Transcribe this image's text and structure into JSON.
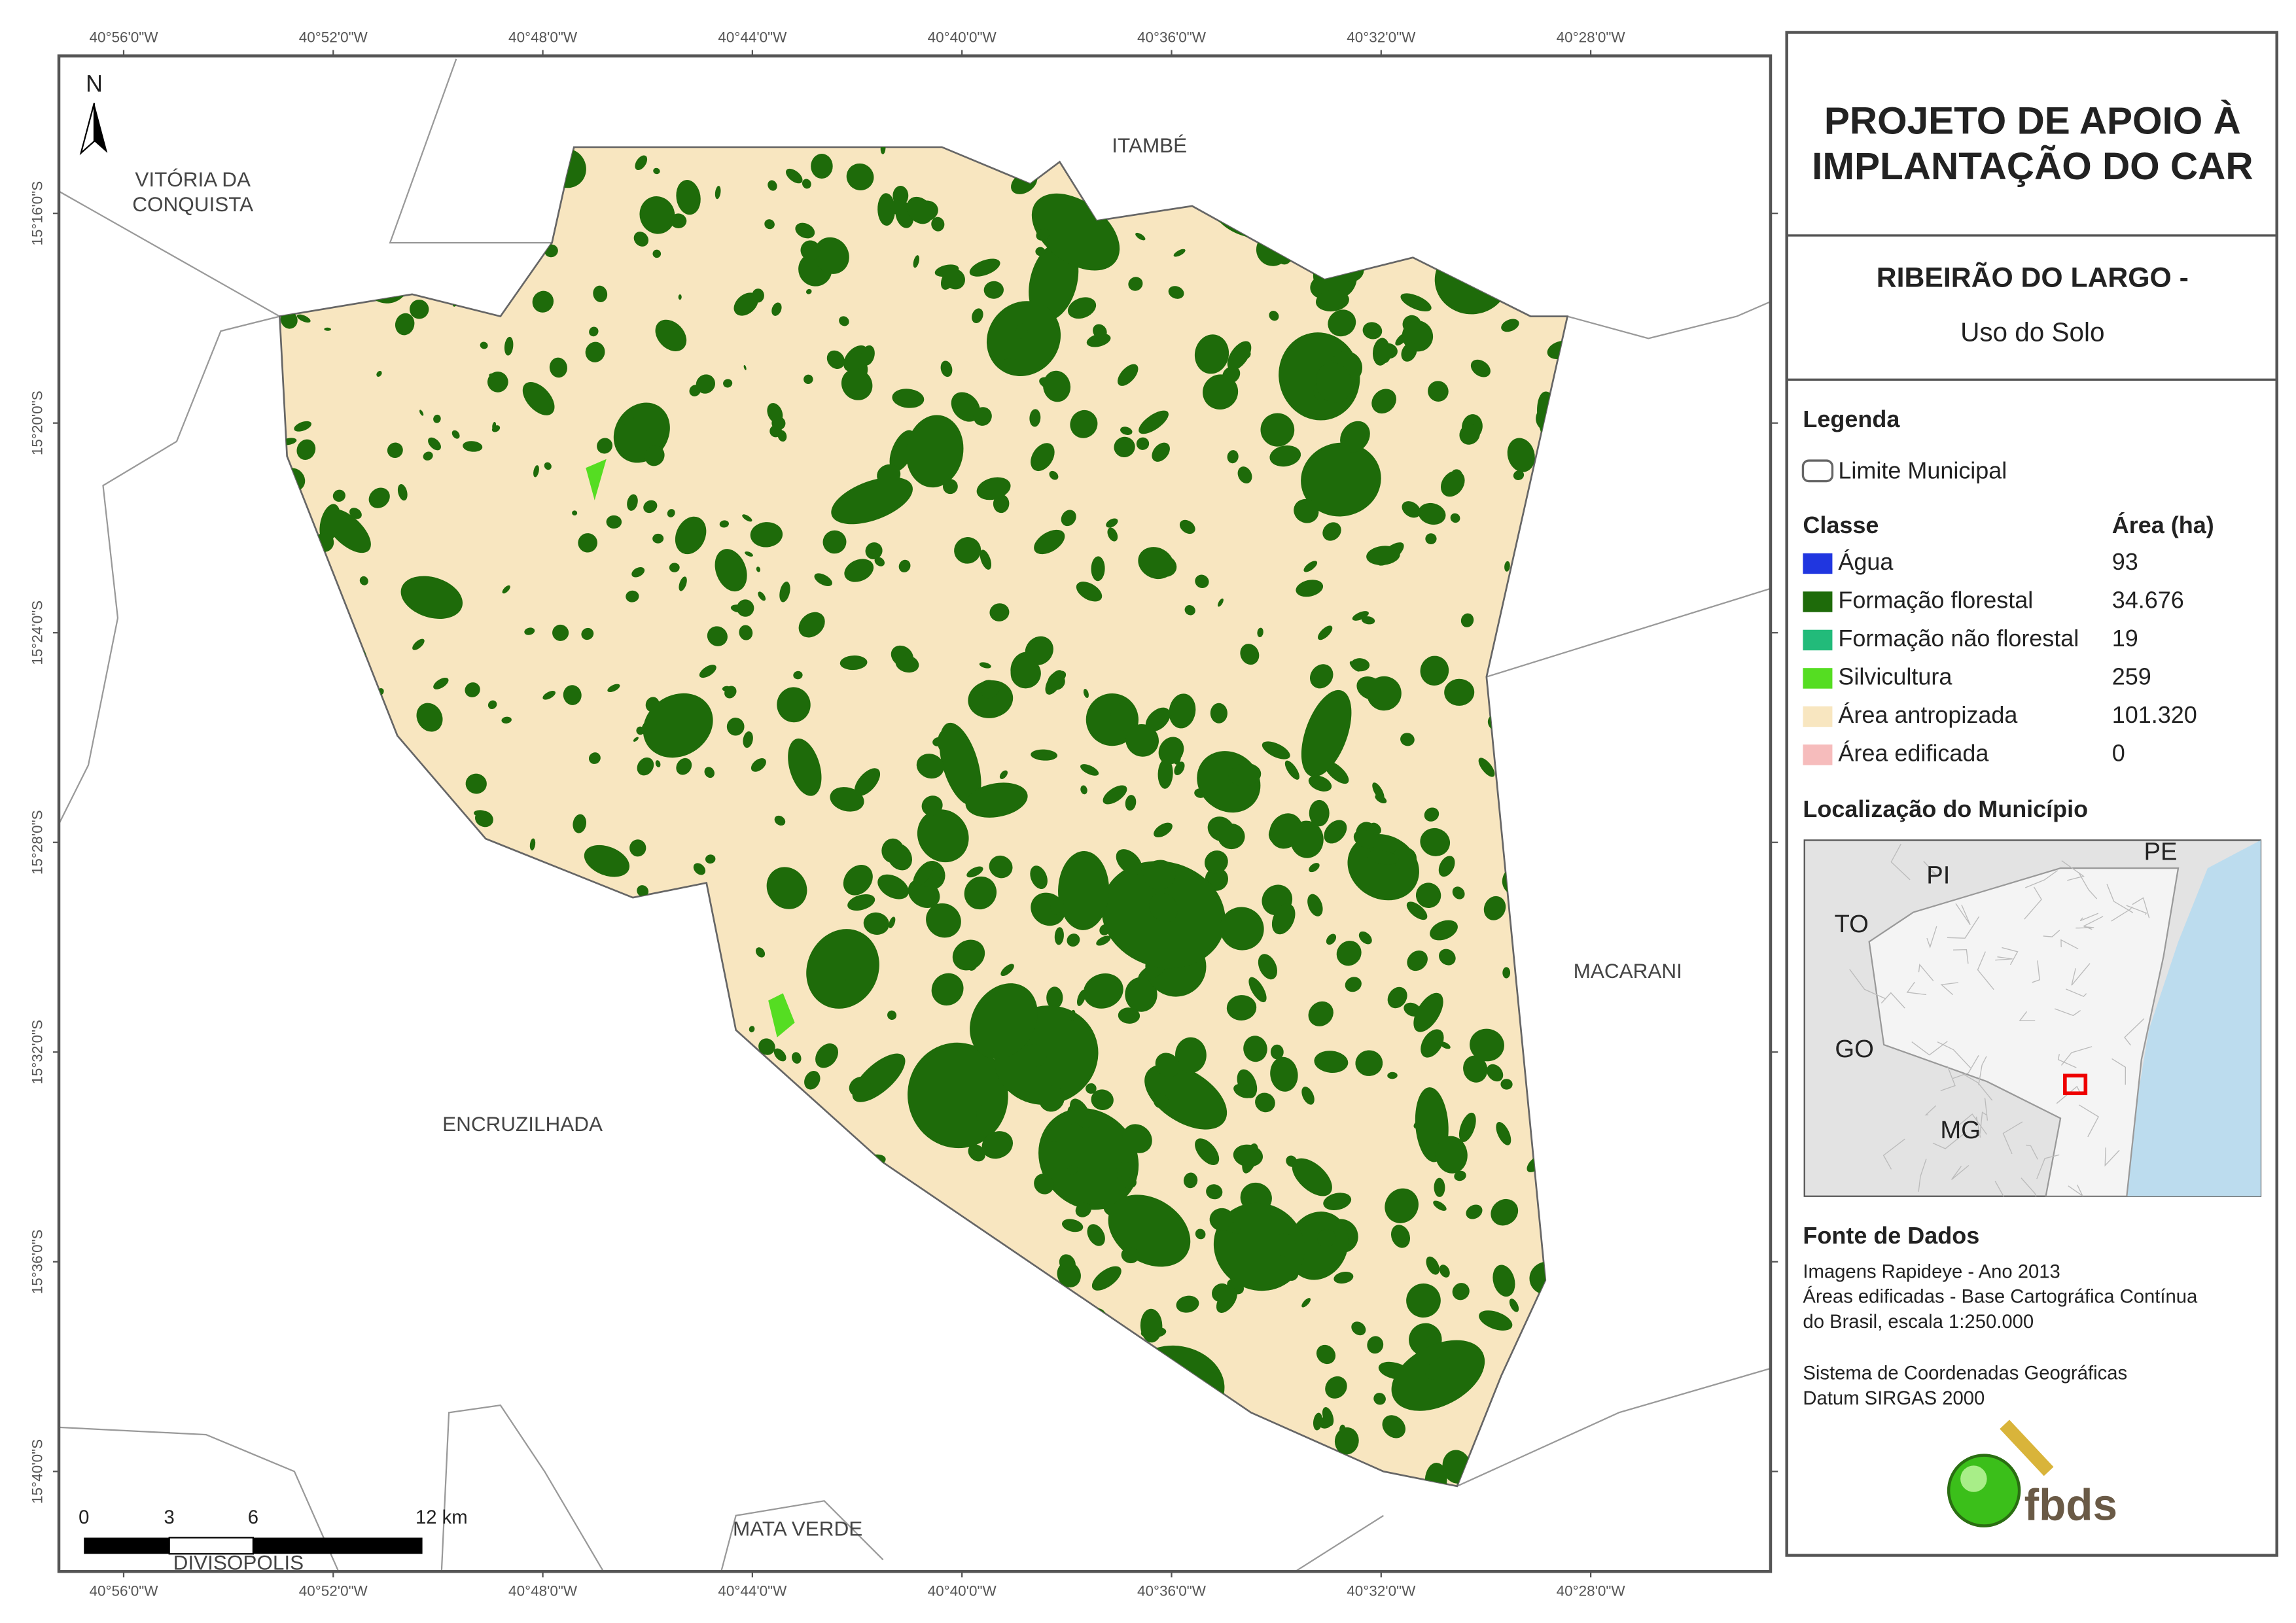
{
  "map": {
    "lon_labels": [
      "40°56'0\"W",
      "40°52'0\"W",
      "40°48'0\"W",
      "40°44'0\"W",
      "40°40'0\"W",
      "40°36'0\"W",
      "40°32'0\"W",
      "40°28'0\"W"
    ],
    "lat_labels": [
      "15°16'0\"S",
      "15°20'0\"S",
      "15°24'0\"S",
      "15°28'0\"S",
      "15°32'0\"S",
      "15°36'0\"S",
      "15°40'0\"S"
    ],
    "places": [
      "VITÓRIA DA",
      "CONQUISTA",
      "ITAMBÉ",
      "MACARANI",
      "ENCRUZILHADA",
      "MATA VERDE",
      "DIVISÓPOLIS"
    ],
    "north": "N",
    "scale": [
      "0",
      "3",
      "6",
      "12 km"
    ]
  },
  "panel": {
    "title": [
      "PROJETO DE APOIO À",
      "IMPLANTAÇÃO DO CAR"
    ],
    "subtitle": "RIBEIRÃO DO LARGO -",
    "theme": "Uso do Solo",
    "legend_title": "Legenda",
    "boundary": "Limite Municipal",
    "class_header": "Classe",
    "area_header": "Área (ha)",
    "classes": [
      {
        "name": "Água",
        "area": "93",
        "color": "#2036e0"
      },
      {
        "name": "Formação florestal",
        "area": "34.676",
        "color": "#1e6b0a"
      },
      {
        "name": "Formação não florestal",
        "area": "19",
        "color": "#22bb7a"
      },
      {
        "name": "Silvicultura",
        "area": "259",
        "color": "#55dd22"
      },
      {
        "name": "Área antropizada",
        "area": "101.320",
        "color": "#f8e6c0"
      },
      {
        "name": "Área edificada",
        "area": "0",
        "color": "#f6bcbc"
      }
    ],
    "location_title": "Localização do Município",
    "inset_labels": [
      "PI",
      "PE",
      "TO",
      "GO",
      "MG"
    ],
    "source_title": "Fonte de Dados",
    "source_lines": [
      "Imagens Rapideye - Ano 2013",
      "Áreas edificadas - Base Cartográfica Contínua",
      "do Brasil, escala 1:250.000",
      "Sistema de Coordenadas Geográficas",
      "Datum SIRGAS 2000"
    ],
    "logo": "fbds"
  }
}
